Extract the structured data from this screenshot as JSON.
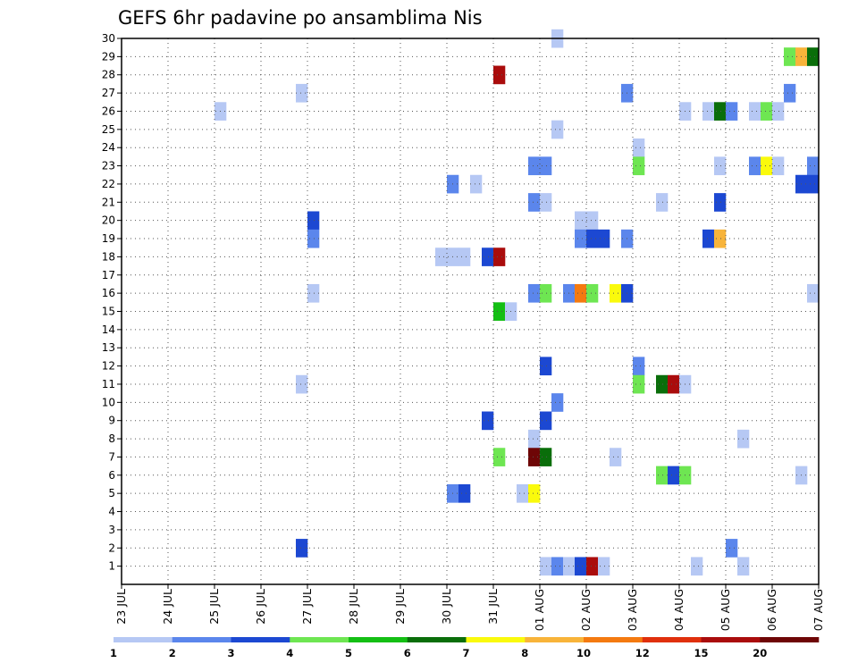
{
  "chart_data": {
    "type": "heatmap",
    "title": "GEFS 6hr padavine po ansamblima Nis",
    "xlabel": "",
    "ylabel": "",
    "x_ticks": [
      "23 JUL",
      "24 JUL",
      "25 JUL",
      "26 JUL",
      "27 JUL",
      "28 JUL",
      "29 JUL",
      "30 JUL",
      "31 JUL",
      "01 AUG",
      "02 AUG",
      "03 AUG",
      "04 AUG",
      "05 AUG",
      "06 AUG",
      "07 AUG"
    ],
    "x_range_days": [
      0,
      15
    ],
    "y_ticks": [
      1,
      2,
      3,
      4,
      5,
      6,
      7,
      8,
      9,
      10,
      11,
      12,
      13,
      14,
      15,
      16,
      17,
      18,
      19,
      20,
      21,
      22,
      23,
      24,
      25,
      26,
      27,
      28,
      29,
      30
    ],
    "y_range": [
      0,
      30
    ],
    "grid": true,
    "colorbar": {
      "labels": [
        "1",
        "2",
        "3",
        "4",
        "5",
        "6",
        "7",
        "8",
        "10",
        "12",
        "15",
        "20"
      ],
      "bounds": [
        1,
        2,
        3,
        4,
        5,
        6,
        7,
        8,
        10,
        12,
        15,
        20
      ],
      "colors": [
        "#b6c8f4",
        "#5b86ec",
        "#1c48d2",
        "#6ee652",
        "#14bf14",
        "#0a6e0a",
        "#fafa0c",
        "#f8b43a",
        "#f47a10",
        "#e0300c",
        "#aa0c0c",
        "#6e0606"
      ]
    },
    "cells": [
      {
        "t": 37,
        "m": 30,
        "v": 0.5
      },
      {
        "t": 57,
        "m": 29,
        "v": 4.5
      },
      {
        "t": 58,
        "m": 29,
        "v": 9
      },
      {
        "t": 59,
        "m": 29,
        "v": 6.5
      },
      {
        "t": 32,
        "m": 28,
        "v": 17
      },
      {
        "t": 15,
        "m": 27,
        "v": 1.5
      },
      {
        "t": 43,
        "m": 27,
        "v": 2.5
      },
      {
        "t": 57,
        "m": 27,
        "v": 2.5
      },
      {
        "t": 8,
        "m": 26,
        "v": 1.5
      },
      {
        "t": 48,
        "m": 26,
        "v": 1.5
      },
      {
        "t": 50,
        "m": 26,
        "v": 1.5
      },
      {
        "t": 51,
        "m": 26,
        "v": 6.5
      },
      {
        "t": 52,
        "m": 26,
        "v": 2.5
      },
      {
        "t": 54,
        "m": 26,
        "v": 1.5
      },
      {
        "t": 55,
        "m": 26,
        "v": 4.5
      },
      {
        "t": 56,
        "m": 26,
        "v": 1.5
      },
      {
        "t": 37,
        "m": 25,
        "v": 1.5
      },
      {
        "t": 44,
        "m": 24,
        "v": 1.5
      },
      {
        "t": 35,
        "m": 23,
        "v": 2.5
      },
      {
        "t": 36,
        "m": 23,
        "v": 2.5
      },
      {
        "t": 44,
        "m": 23,
        "v": 4.5
      },
      {
        "t": 51,
        "m": 23,
        "v": 1.5
      },
      {
        "t": 54,
        "m": 23,
        "v": 2.5
      },
      {
        "t": 55,
        "m": 23,
        "v": 7.5
      },
      {
        "t": 56,
        "m": 23,
        "v": 1.5
      },
      {
        "t": 59,
        "m": 23,
        "v": 2.5
      },
      {
        "t": 28,
        "m": 22,
        "v": 2.5
      },
      {
        "t": 30,
        "m": 22,
        "v": 1.5
      },
      {
        "t": 58,
        "m": 22,
        "v": 3.5
      },
      {
        "t": 59,
        "m": 22,
        "v": 3.5
      },
      {
        "t": 35,
        "m": 21,
        "v": 2.5
      },
      {
        "t": 36,
        "m": 21,
        "v": 1.5
      },
      {
        "t": 46,
        "m": 21,
        "v": 1.5
      },
      {
        "t": 51,
        "m": 21,
        "v": 3.5
      },
      {
        "t": 16,
        "m": 20,
        "v": 3.5
      },
      {
        "t": 39,
        "m": 20,
        "v": 1.5
      },
      {
        "t": 40,
        "m": 20,
        "v": 1.5
      },
      {
        "t": 16,
        "m": 19,
        "v": 2.5
      },
      {
        "t": 39,
        "m": 19,
        "v": 2.5
      },
      {
        "t": 40,
        "m": 19,
        "v": 3.5
      },
      {
        "t": 41,
        "m": 19,
        "v": 3.5
      },
      {
        "t": 43,
        "m": 19,
        "v": 2.5
      },
      {
        "t": 50,
        "m": 19,
        "v": 3.5
      },
      {
        "t": 51,
        "m": 19,
        "v": 9
      },
      {
        "t": 27,
        "m": 18,
        "v": 1.5
      },
      {
        "t": 28,
        "m": 18,
        "v": 1.5
      },
      {
        "t": 29,
        "m": 18,
        "v": 1.5
      },
      {
        "t": 31,
        "m": 18,
        "v": 3.5
      },
      {
        "t": 32,
        "m": 18,
        "v": 17
      },
      {
        "t": 16,
        "m": 16,
        "v": 1.5
      },
      {
        "t": 35,
        "m": 16,
        "v": 2.5
      },
      {
        "t": 36,
        "m": 16,
        "v": 4.5
      },
      {
        "t": 38,
        "m": 16,
        "v": 2.5
      },
      {
        "t": 39,
        "m": 16,
        "v": 11
      },
      {
        "t": 40,
        "m": 16,
        "v": 4.5
      },
      {
        "t": 42,
        "m": 16,
        "v": 7.5
      },
      {
        "t": 43,
        "m": 16,
        "v": 3.5
      },
      {
        "t": 59,
        "m": 16,
        "v": 1.5
      },
      {
        "t": 32,
        "m": 15,
        "v": 5.5
      },
      {
        "t": 33,
        "m": 15,
        "v": 1.5
      },
      {
        "t": 36,
        "m": 12,
        "v": 3.5
      },
      {
        "t": 44,
        "m": 12,
        "v": 2.5
      },
      {
        "t": 15,
        "m": 11,
        "v": 1.5
      },
      {
        "t": 44,
        "m": 11,
        "v": 4.5
      },
      {
        "t": 46,
        "m": 11,
        "v": 6.5
      },
      {
        "t": 47,
        "m": 11,
        "v": 17
      },
      {
        "t": 48,
        "m": 11,
        "v": 1.5
      },
      {
        "t": 37,
        "m": 10,
        "v": 2.5
      },
      {
        "t": 31,
        "m": 9,
        "v": 3.5
      },
      {
        "t": 36,
        "m": 9,
        "v": 3.5
      },
      {
        "t": 35,
        "m": 8,
        "v": 1.5
      },
      {
        "t": 53,
        "m": 8,
        "v": 1.5
      },
      {
        "t": 32,
        "m": 7,
        "v": 4.5
      },
      {
        "t": 35,
        "m": 7,
        "v": 22
      },
      {
        "t": 36,
        "m": 7,
        "v": 6.5
      },
      {
        "t": 42,
        "m": 7,
        "v": 1.5
      },
      {
        "t": 46,
        "m": 6,
        "v": 4.5
      },
      {
        "t": 47,
        "m": 6,
        "v": 3.5
      },
      {
        "t": 48,
        "m": 6,
        "v": 4.5
      },
      {
        "t": 58,
        "m": 6,
        "v": 1.5
      },
      {
        "t": 28,
        "m": 5,
        "v": 2.5
      },
      {
        "t": 29,
        "m": 5,
        "v": 3.5
      },
      {
        "t": 34,
        "m": 5,
        "v": 1.5
      },
      {
        "t": 35,
        "m": 5,
        "v": 7.5
      },
      {
        "t": 15,
        "m": 2,
        "v": 3.5
      },
      {
        "t": 52,
        "m": 2,
        "v": 2.5
      },
      {
        "t": 36,
        "m": 1,
        "v": 1.5
      },
      {
        "t": 37,
        "m": 1,
        "v": 2.5
      },
      {
        "t": 38,
        "m": 1,
        "v": 1.5
      },
      {
        "t": 39,
        "m": 1,
        "v": 3.5
      },
      {
        "t": 40,
        "m": 1,
        "v": 17
      },
      {
        "t": 41,
        "m": 1,
        "v": 1.5
      },
      {
        "t": 49,
        "m": 1,
        "v": 1.5
      },
      {
        "t": 53,
        "m": 1,
        "v": 1.5
      }
    ]
  }
}
